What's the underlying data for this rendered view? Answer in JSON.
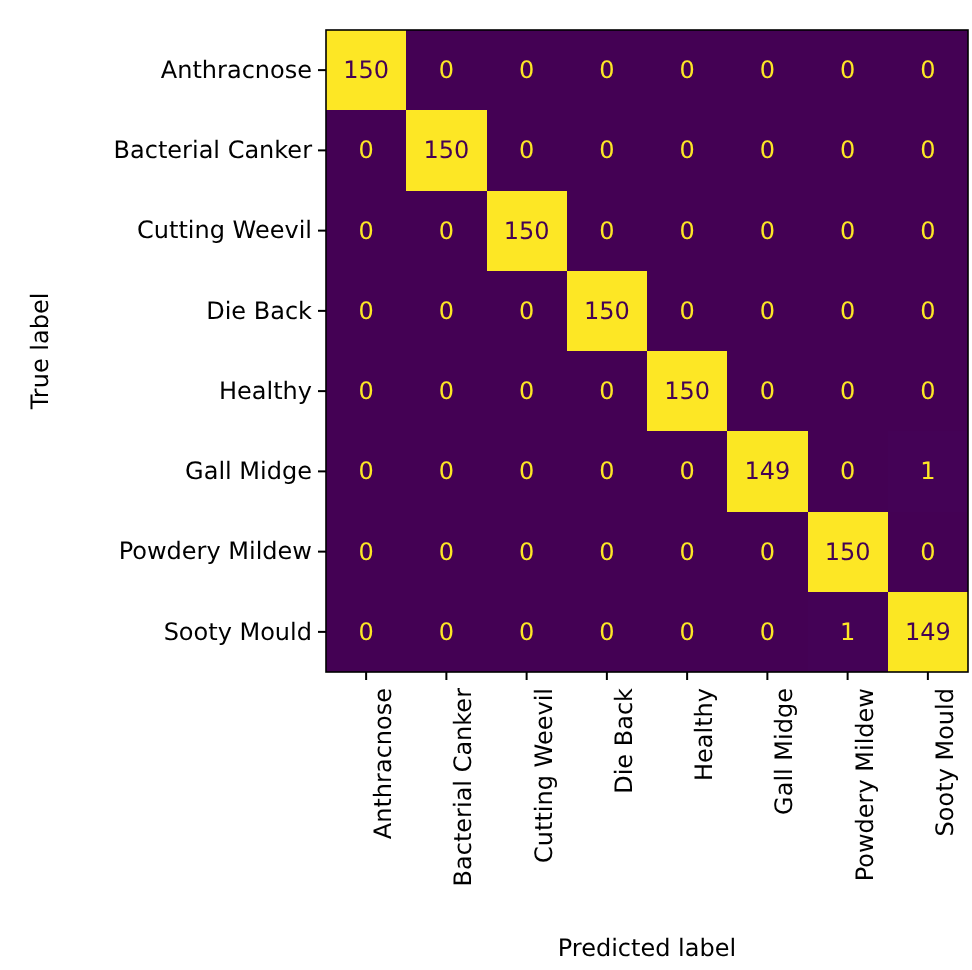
{
  "chart_data": {
    "type": "heatmap",
    "data_labels": true,
    "xlabel": "Predicted label",
    "ylabel": "True label",
    "categories": [
      "Anthracnose",
      "Bacterial Canker",
      "Cutting Weevil",
      "Die Back",
      "Healthy",
      "Gall Midge",
      "Powdery Mildew",
      "Sooty Mould"
    ],
    "y_categories": [
      "Anthracnose",
      "Bacterial Canker",
      "Cutting Weevil",
      "Die Back",
      "Healthy",
      "Gall Midge",
      "Powdery Mildew",
      "Sooty Mould"
    ],
    "cells": [
      [
        150,
        0,
        0,
        0,
        0,
        0,
        0,
        0
      ],
      [
        0,
        150,
        0,
        0,
        0,
        0,
        0,
        0
      ],
      [
        0,
        0,
        150,
        0,
        0,
        0,
        0,
        0
      ],
      [
        0,
        0,
        0,
        150,
        0,
        0,
        0,
        0
      ],
      [
        0,
        0,
        0,
        0,
        150,
        0,
        0,
        0
      ],
      [
        0,
        0,
        0,
        0,
        0,
        149,
        0,
        1
      ],
      [
        0,
        0,
        0,
        0,
        0,
        0,
        150,
        0
      ],
      [
        0,
        0,
        0,
        0,
        0,
        0,
        1,
        149
      ]
    ]
  }
}
